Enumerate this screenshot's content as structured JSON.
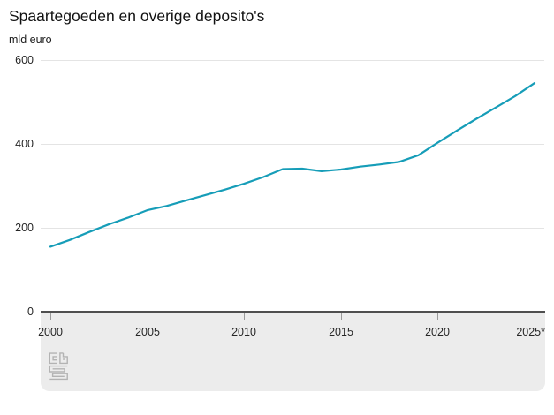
{
  "header": {
    "title": "Spaartegoeden en overige deposito's",
    "unit_label": "mld euro"
  },
  "chart_data": {
    "type": "line",
    "title": "Spaartegoeden en overige deposito's",
    "ylabel": "mld euro",
    "xlabel": "",
    "xlim": [
      2000,
      2025
    ],
    "ylim": [
      0,
      600
    ],
    "grid": "horizontal",
    "legend_position": "none",
    "x_ticks": [
      2000,
      2005,
      2010,
      2015,
      2020,
      2025
    ],
    "x_ticklabels": [
      "2000",
      "2005",
      "2010",
      "2015",
      "2020",
      "2025*"
    ],
    "y_ticks": [
      0,
      200,
      400,
      600
    ],
    "y_ticklabels": [
      "0",
      "200",
      "400",
      "600"
    ],
    "series": [
      {
        "name": "Spaartegoeden en overige deposito's",
        "color": "#169db8",
        "x": [
          2000,
          2001,
          2002,
          2003,
          2004,
          2005,
          2006,
          2007,
          2008,
          2009,
          2010,
          2011,
          2012,
          2013,
          2014,
          2015,
          2016,
          2017,
          2018,
          2019,
          2020,
          2021,
          2022,
          2023,
          2024,
          2025
        ],
        "values": [
          155,
          171,
          190,
          208,
          224,
          242,
          252,
          265,
          278,
          291,
          305,
          321,
          340,
          341,
          335,
          339,
          346,
          351,
          357,
          373,
          403,
          432,
          460,
          487,
          514,
          545
        ]
      }
    ]
  },
  "footnote_marker": "*",
  "logo": {
    "name": "CBS"
  },
  "colors": {
    "line": "#169db8",
    "gridline": "#e4e4e4",
    "zero_axis": "#4f4f4f",
    "footer_band": "#ececec",
    "tick": "#9a9a9a",
    "text": "#262626",
    "logo": "#b3b3b3",
    "background": "#ffffff"
  }
}
